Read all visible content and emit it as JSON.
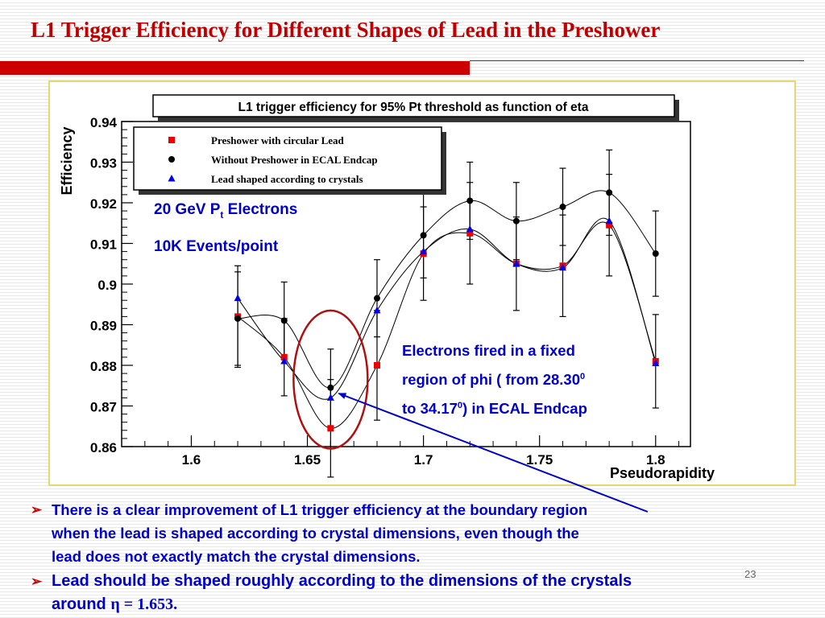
{
  "slide": {
    "title": "L1 Trigger Efficiency for Different Shapes  of Lead in the Preshower",
    "page_number": "23",
    "accent_color": "#cc0000",
    "text_color": "#0000cc"
  },
  "annotations": {
    "beam_prefix": "20 GeV P",
    "beam_sub": "t",
    "beam_suffix": " Electrons",
    "events": "10K Events/point",
    "fired_line1": "Electrons fired in a fixed",
    "fired_line2_prefix": "region of phi ( from 28.30",
    "fired_line2_sup": "0",
    "fired_line3_prefix": "to 34.17",
    "fired_line3_sup": "0",
    "fired_line3_suffix": ") in ECAL Endcap"
  },
  "bullets": [
    {
      "marker": "➢",
      "lines": [
        "There is a clear improvement of L1 trigger efficiency  at the boundary region",
        "when the lead is shaped according to crystal dimensions, even though the",
        "lead does not exactly match the crystal dimensions."
      ]
    },
    {
      "marker": "➢",
      "line1": "Lead should be shaped roughly according to the dimensions of the crystals",
      "line2_prefix": "around ",
      "line2_math": "η = 1.653."
    }
  ],
  "chart_data": {
    "type": "scatter",
    "title": "L1 trigger efficiency for 95% Pt threshold as function of eta",
    "xlabel": "Pseudorapidity",
    "ylabel": "Efficiency",
    "xlim": [
      1.57,
      1.815
    ],
    "ylim": [
      0.86,
      0.94
    ],
    "xticks": [
      "1.6",
      "1.65",
      "1.7",
      "1.75",
      "1.8"
    ],
    "yticks": [
      "0.86",
      "0.87",
      "0.88",
      "0.89",
      "0.9",
      "0.91",
      "0.92",
      "0.93",
      "0.94"
    ],
    "x": [
      1.62,
      1.64,
      1.66,
      1.68,
      1.7,
      1.72,
      1.74,
      1.76,
      1.78,
      1.8
    ],
    "legend_position": "top-left",
    "series": [
      {
        "name": "Preshower with circular Lead",
        "marker": "square",
        "color": "#ee0000",
        "values": [
          0.892,
          0.882,
          0.8645,
          0.88,
          0.9075,
          0.9125,
          0.905,
          0.9045,
          0.9145,
          0.881
        ],
        "errors": [
          0.0125,
          0.0095,
          0.012,
          0.0135,
          0.0115,
          0.0125,
          0.0115,
          0.0125,
          0.0125,
          0.0115
        ]
      },
      {
        "name": "Without Preshower in ECAL Endcap",
        "marker": "circle",
        "color": "#000000",
        "values": [
          0.8915,
          0.891,
          0.8745,
          0.8965,
          0.912,
          0.9205,
          0.9155,
          0.919,
          0.9225,
          0.9075
        ],
        "errors": [
          0.0115,
          0.0095,
          0.0095,
          0.0095,
          0.0105,
          0.0095,
          0.0095,
          0.0095,
          0.0105,
          0.0105
        ]
      },
      {
        "name": "Lead shaped according to crystals",
        "marker": "triangle",
        "color": "#0000ee",
        "values": [
          0.8965,
          0.881,
          0.872,
          0.8935,
          0.908,
          0.9135,
          0.905,
          0.904,
          0.9155,
          0.8805
        ],
        "errors": []
      }
    ],
    "highlight": {
      "type": "ellipse",
      "x": 1.66,
      "y_range": [
        0.8595,
        0.8935
      ],
      "color": "#b01010"
    },
    "arrow": {
      "color": "#0000cc",
      "target": [
        1.66,
        0.8725
      ]
    }
  }
}
